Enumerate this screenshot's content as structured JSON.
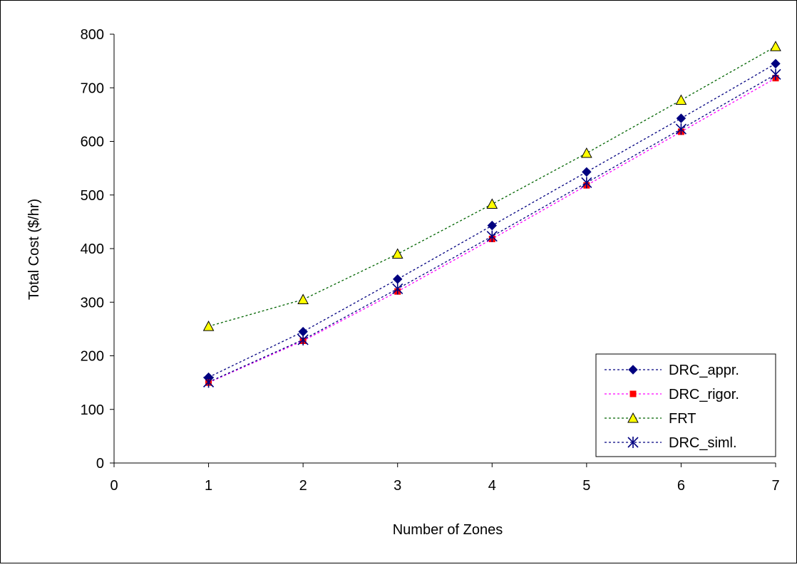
{
  "chart_data": {
    "type": "line",
    "title": "",
    "xlabel": "Number of Zones",
    "ylabel": "Total Cost ($/hr)",
    "xlim": [
      0,
      7
    ],
    "ylim": [
      0,
      800
    ],
    "x_ticks": [
      "0",
      "1",
      "2",
      "3",
      "4",
      "5",
      "6",
      "7"
    ],
    "y_ticks": [
      "0",
      "100",
      "200",
      "300",
      "400",
      "500",
      "600",
      "700",
      "800"
    ],
    "grid": false,
    "legend_position": "bottom-right",
    "x": [
      1,
      2,
      3,
      4,
      5,
      6,
      7
    ],
    "series": [
      {
        "name": "DRC_appr.",
        "values": [
          160,
          245,
          343,
          443,
          543,
          643,
          745
        ],
        "color": "#000080",
        "marker": "diamond"
      },
      {
        "name": "DRC_rigor.",
        "values": [
          150,
          228,
          320,
          418,
          518,
          618,
          718
        ],
        "color": "#ff00ff",
        "marker_color": "#ff0000",
        "marker": "square"
      },
      {
        "name": "FRT",
        "values": [
          255,
          305,
          390,
          483,
          578,
          677,
          777
        ],
        "color": "#006400",
        "marker_color": "#ffff00",
        "marker": "triangle"
      },
      {
        "name": "DRC_siml.",
        "values": [
          151,
          230,
          325,
          423,
          523,
          623,
          725
        ],
        "color": "#000080",
        "marker": "asterisk"
      }
    ]
  }
}
